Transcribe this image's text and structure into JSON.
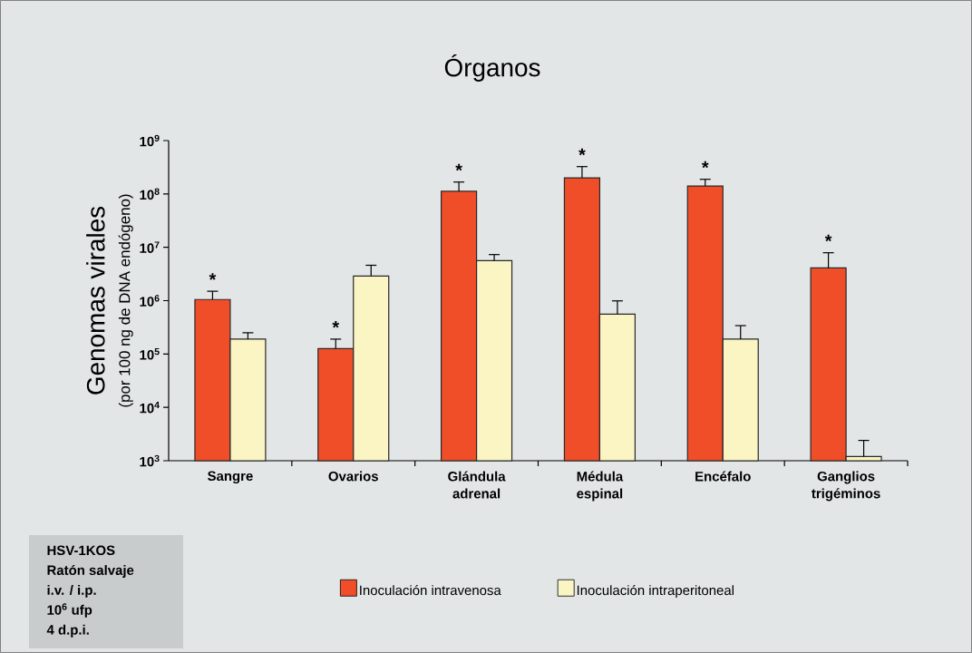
{
  "chart_data": {
    "type": "bar",
    "title": "Órganos",
    "ylabel": "Genomas virales",
    "categories": [
      "Sangre",
      "Ovarios",
      "Glándula adrenal",
      "Médula espinal",
      "Encéfalo",
      "Ganglios trigéminos"
    ],
    "series": [
      {
        "name": "Inoculación intravenosa",
        "color": "#f04e28",
        "values": [
          1050000,
          126000,
          112000000,
          200000000,
          141000000,
          4100000
        ],
        "errors": [
          [
            1050000,
            1500000
          ],
          [
            126000,
            190000
          ],
          [
            112000000,
            167000000
          ],
          [
            200000000,
            325000000
          ],
          [
            141000000,
            188000000
          ],
          [
            4100000,
            7900000
          ]
        ]
      },
      {
        "name": "Inoculación intraperitoneal",
        "color": "#fbf5c4",
        "values": [
          190000,
          2900000,
          5600000,
          560000,
          190000,
          1200
        ],
        "errors": [
          [
            190000,
            250000
          ],
          [
            2900000,
            4600000
          ],
          [
            5600000,
            7300000
          ],
          [
            560000,
            990000
          ],
          [
            190000,
            340000
          ],
          [
            1200,
            2400
          ]
        ]
      }
    ],
    "log": "y",
    "ylim": [
      1000,
      1000000000
    ],
    "yticks": [
      {
        "value": 1000,
        "label": "10$^{3}$"
      },
      {
        "value": 10000,
        "label": "10$^{4}$"
      },
      {
        "value": 100000,
        "label": "10$^{5}$"
      },
      {
        "value": 1000000,
        "label": "10$^{6}$"
      },
      {
        "value": 10000000,
        "label": "10$^{7}$"
      },
      {
        "value": 100000000,
        "label": "10$^{8}$"
      },
      {
        "value": 1000000000,
        "label": "10$^{9}$"
      }
    ],
    "legend": "bottom",
    "grid": false,
    "annotations": [
      "(por 100 ng de DNA endógeno)",
      "HSV-1KOS",
      "Ratón salvaje",
      "i.v. / i.p.",
      "10$^{6}$ ufp",
      "4 d.p.i.",
      "*",
      "*",
      "*",
      "*",
      "*",
      "*"
    ]
  }
}
